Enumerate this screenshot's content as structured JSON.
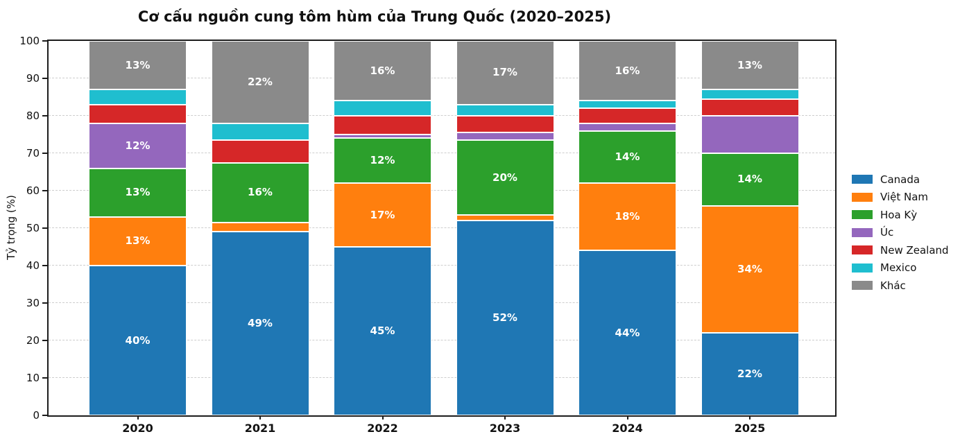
{
  "title": "Cơ cấu nguồn cung tôm hùm của Trung Quốc (2020–2025)",
  "y_axis_label": "Tỷ trọng (%)",
  "chart_data": {
    "type": "bar",
    "stacked": true,
    "title": "Cơ cấu nguồn cung tôm hùm của Trung Quốc (2020–2025)",
    "xlabel": "",
    "ylabel": "Tỷ trọng (%)",
    "ylim": [
      0,
      100
    ],
    "yticks": [
      0,
      10,
      20,
      30,
      40,
      50,
      60,
      70,
      80,
      90,
      100
    ],
    "grid": "horizontal-dashed",
    "legend_position": "right",
    "bar_label_format": "percent",
    "bar_label_min_value": 12,
    "categories": [
      "2020",
      "2021",
      "2022",
      "2023",
      "2024",
      "2025"
    ],
    "series": [
      {
        "name": "Canada",
        "color": "#1f77b4",
        "values": [
          40,
          49,
          45,
          52,
          44,
          22
        ]
      },
      {
        "name": "Việt Nam",
        "color": "#ff7f0e",
        "values": [
          13,
          2.5,
          17,
          1.5,
          18,
          34
        ]
      },
      {
        "name": "Hoa Kỳ",
        "color": "#2ca02c",
        "values": [
          13,
          16,
          12,
          20,
          14,
          14
        ]
      },
      {
        "name": "Úc",
        "color": "#9467bd",
        "values": [
          12,
          0,
          1,
          2,
          2,
          10
        ]
      },
      {
        "name": "New Zealand",
        "color": "#d62728",
        "values": [
          5,
          6,
          5,
          4.5,
          4,
          4.5
        ]
      },
      {
        "name": "Mexico",
        "color": "#1fbecf",
        "values": [
          4,
          4.5,
          4,
          3,
          2,
          2.5
        ]
      },
      {
        "name": "Khác",
        "color": "#8a8a8a",
        "values": [
          13,
          22,
          16,
          17,
          16,
          13
        ]
      }
    ],
    "visible_segment_labels": {
      "2020": [
        "40%",
        "13%",
        "13%",
        "12%",
        "13%"
      ],
      "2021": [
        "49%",
        "16%",
        "22%"
      ],
      "2022": [
        "45%",
        "17%",
        "12%",
        "16%"
      ],
      "2023": [
        "52%",
        "20%",
        "17%"
      ],
      "2024": [
        "44%",
        "18%",
        "14%",
        "16%"
      ],
      "2025": [
        "22%",
        "34%",
        "14%",
        "13%"
      ]
    }
  }
}
